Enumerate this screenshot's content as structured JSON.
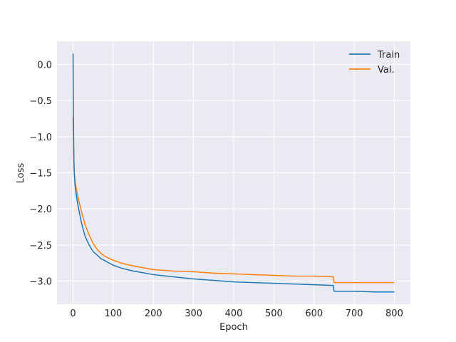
{
  "chart_data": {
    "type": "line",
    "xlabel": "Epoch",
    "ylabel": "Loss",
    "xlim": [
      -40,
      840
    ],
    "ylim": [
      -3.32,
      0.32
    ],
    "xticks": [
      0,
      100,
      200,
      300,
      400,
      500,
      600,
      700,
      800
    ],
    "yticks": [
      0.0,
      -0.5,
      -1.0,
      -1.5,
      -2.0,
      -2.5,
      -3.0
    ],
    "ytick_labels": [
      "0.0",
      "−0.5",
      "−1.0",
      "−1.5",
      "−2.0",
      "−2.5",
      "−3.0"
    ],
    "grid": true,
    "legend_position": "top-right",
    "series": [
      {
        "name": "Train",
        "color": "#1f77b4",
        "x": [
          0,
          1,
          2,
          3,
          5,
          8,
          10,
          15,
          20,
          25,
          30,
          40,
          50,
          60,
          70,
          80,
          100,
          120,
          150,
          200,
          250,
          300,
          350,
          400,
          450,
          500,
          550,
          600,
          648,
          650,
          700,
          750,
          800
        ],
        "y": [
          0.15,
          -0.75,
          -1.3,
          -1.5,
          -1.68,
          -1.8,
          -1.88,
          -2.03,
          -2.17,
          -2.28,
          -2.38,
          -2.5,
          -2.59,
          -2.64,
          -2.69,
          -2.72,
          -2.78,
          -2.82,
          -2.86,
          -2.91,
          -2.94,
          -2.97,
          -2.99,
          -3.01,
          -3.02,
          -3.03,
          -3.04,
          -3.05,
          -3.06,
          -3.14,
          -3.14,
          -3.15,
          -3.15
        ]
      },
      {
        "name": "Val.",
        "color": "#ff7f0e",
        "x": [
          0,
          1,
          2,
          3,
          5,
          8,
          10,
          15,
          20,
          25,
          30,
          40,
          50,
          60,
          70,
          80,
          100,
          120,
          150,
          200,
          250,
          300,
          350,
          400,
          450,
          500,
          550,
          600,
          648,
          650,
          700,
          750,
          800
        ],
        "y": [
          -0.73,
          -1.0,
          -1.35,
          -1.5,
          -1.62,
          -1.72,
          -1.78,
          -1.9,
          -2.02,
          -2.12,
          -2.22,
          -2.36,
          -2.48,
          -2.56,
          -2.62,
          -2.66,
          -2.71,
          -2.75,
          -2.79,
          -2.84,
          -2.86,
          -2.87,
          -2.89,
          -2.9,
          -2.91,
          -2.92,
          -2.93,
          -2.93,
          -2.94,
          -3.02,
          -3.02,
          -3.02,
          -3.02
        ]
      }
    ]
  }
}
